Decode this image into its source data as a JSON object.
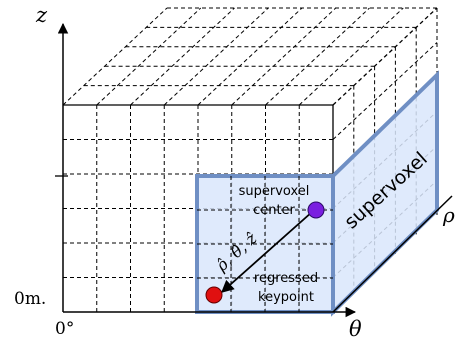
{
  "axes": {
    "z_label": "z",
    "theta_label": "θ",
    "rho_label": "ρ",
    "zero_height": "0m.",
    "zero_angle": "0°"
  },
  "supervoxel": {
    "label": "supervoxel",
    "center_label_line1": "supervoxel",
    "center_label_line2": "center",
    "offset_label": "ρ̂, θ̂, ẑ",
    "keypoint_label_line1": "regressed",
    "keypoint_label_line2": "keypoint"
  },
  "colors": {
    "supervoxel_fill": "#d9e6fb",
    "supervoxel_border": "#6f8fc4",
    "center_point": "#7a1fe0",
    "keypoint": "#e01010"
  }
}
